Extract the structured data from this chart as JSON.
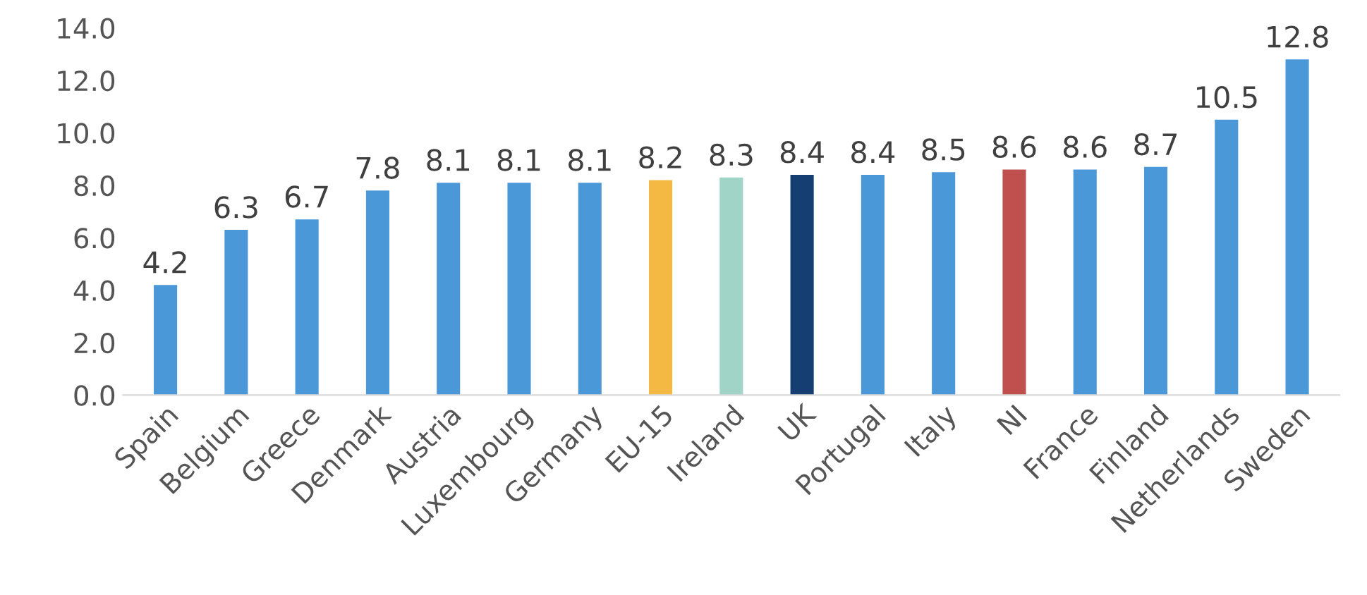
{
  "chart_data": {
    "type": "bar",
    "categories": [
      "Spain",
      "Belgium",
      "Greece",
      "Denmark",
      "Austria",
      "Luxembourg",
      "Germany",
      "EU-15",
      "Ireland",
      "UK",
      "Portugal",
      "Italy",
      "NI",
      "France",
      "Finland",
      "Netherlands",
      "Sweden"
    ],
    "values": [
      4.2,
      6.3,
      6.7,
      7.8,
      8.1,
      8.1,
      8.1,
      8.2,
      8.3,
      8.4,
      8.4,
      8.5,
      8.6,
      8.6,
      8.7,
      10.5,
      12.8
    ],
    "colors": [
      "#4a98d8",
      "#4a98d8",
      "#4a98d8",
      "#4a98d8",
      "#4a98d8",
      "#4a98d8",
      "#4a98d8",
      "#f4b942",
      "#9fd4c6",
      "#153e73",
      "#4a98d8",
      "#4a98d8",
      "#c0504d",
      "#4a98d8",
      "#4a98d8",
      "#4a98d8",
      "#4a98d8"
    ],
    "ylim": [
      0,
      14
    ],
    "yticks": [
      {
        "value": 0,
        "label": "0.0"
      },
      {
        "value": 2,
        "label": "2.0"
      },
      {
        "value": 4,
        "label": "4.0"
      },
      {
        "value": 6,
        "label": "6.0"
      },
      {
        "value": 8,
        "label": "8.0"
      },
      {
        "value": 10,
        "label": "10.0"
      },
      {
        "value": 12,
        "label": "12.0"
      },
      {
        "value": 14,
        "label": "14.0"
      }
    ],
    "grid": false,
    "legend": false,
    "data_labels": true
  }
}
